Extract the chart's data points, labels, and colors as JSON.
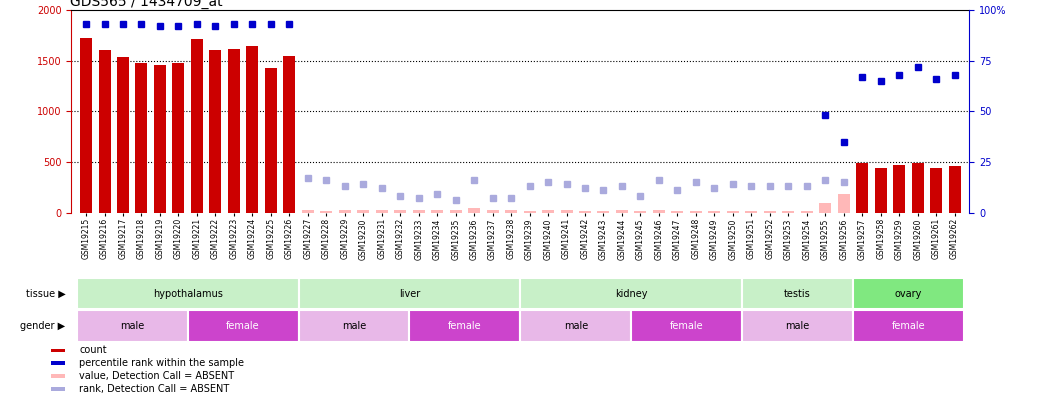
{
  "title": "GDS565 / 1434709_at",
  "samples": [
    "GSM19215",
    "GSM19216",
    "GSM19217",
    "GSM19218",
    "GSM19219",
    "GSM19220",
    "GSM19221",
    "GSM19222",
    "GSM19223",
    "GSM19224",
    "GSM19225",
    "GSM19226",
    "GSM19227",
    "GSM19228",
    "GSM19229",
    "GSM19230",
    "GSM19231",
    "GSM19232",
    "GSM19233",
    "GSM19234",
    "GSM19235",
    "GSM19236",
    "GSM19237",
    "GSM19238",
    "GSM19239",
    "GSM19240",
    "GSM19241",
    "GSM19242",
    "GSM19243",
    "GSM19244",
    "GSM19245",
    "GSM19246",
    "GSM19247",
    "GSM19248",
    "GSM19249",
    "GSM19250",
    "GSM19251",
    "GSM19252",
    "GSM19253",
    "GSM19254",
    "GSM19255",
    "GSM19256",
    "GSM19257",
    "GSM19258",
    "GSM19259",
    "GSM19260",
    "GSM19261",
    "GSM19262"
  ],
  "count_values": [
    1720,
    1610,
    1540,
    1480,
    1460,
    1480,
    1710,
    1610,
    1620,
    1650,
    1430,
    1550,
    null,
    null,
    null,
    null,
    null,
    null,
    null,
    null,
    null,
    null,
    null,
    null,
    null,
    null,
    null,
    null,
    null,
    null,
    null,
    null,
    null,
    null,
    null,
    null,
    null,
    null,
    null,
    null,
    null,
    null,
    490,
    440,
    470,
    490,
    440,
    460
  ],
  "absent_count_values": [
    null,
    null,
    null,
    null,
    null,
    null,
    null,
    null,
    null,
    null,
    null,
    null,
    30,
    20,
    25,
    30,
    25,
    30,
    30,
    30,
    25,
    50,
    25,
    25,
    20,
    25,
    30,
    20,
    20,
    25,
    20,
    25,
    20,
    20,
    20,
    20,
    20,
    20,
    20,
    20,
    100,
    180,
    null,
    null,
    null,
    null,
    null,
    null
  ],
  "percentile_values": [
    93,
    93,
    93,
    93,
    92,
    92,
    93,
    92,
    93,
    93,
    93,
    93,
    null,
    null,
    null,
    null,
    null,
    null,
    null,
    null,
    null,
    null,
    null,
    null,
    null,
    null,
    null,
    null,
    null,
    null,
    null,
    null,
    null,
    null,
    null,
    null,
    null,
    null,
    null,
    null,
    null,
    null,
    null,
    null,
    null,
    null,
    null,
    null
  ],
  "absent_rank_values": [
    null,
    null,
    null,
    null,
    null,
    null,
    null,
    null,
    null,
    null,
    null,
    null,
    17,
    16,
    13,
    14,
    12,
    8,
    7,
    9,
    6,
    16,
    7,
    7,
    13,
    15,
    14,
    12,
    11,
    13,
    8,
    16,
    11,
    15,
    12,
    14,
    13,
    13,
    13,
    13,
    16,
    15,
    null,
    null,
    null,
    null,
    null,
    null
  ],
  "present_percentile_ovary": [
    null,
    null,
    null,
    null,
    null,
    null,
    null,
    null,
    null,
    null,
    null,
    null,
    null,
    null,
    null,
    null,
    null,
    null,
    null,
    null,
    null,
    null,
    null,
    null,
    null,
    null,
    null,
    null,
    null,
    null,
    null,
    null,
    null,
    null,
    null,
    null,
    null,
    null,
    null,
    null,
    null,
    null,
    67,
    65,
    68,
    72,
    66,
    68
  ],
  "testis_present_percentile": [
    null,
    null,
    null,
    null,
    null,
    null,
    null,
    null,
    null,
    null,
    null,
    null,
    null,
    null,
    null,
    null,
    null,
    null,
    null,
    null,
    null,
    null,
    null,
    null,
    null,
    null,
    null,
    null,
    null,
    null,
    null,
    null,
    null,
    null,
    null,
    null,
    null,
    null,
    null,
    null,
    48,
    35,
    null,
    null,
    null,
    null,
    null,
    null
  ],
  "tissue_groups": [
    {
      "label": "hypothalamus",
      "start": 0,
      "end": 11,
      "color": "#c8f0c8"
    },
    {
      "label": "liver",
      "start": 12,
      "end": 23,
      "color": "#c8f0c8"
    },
    {
      "label": "kidney",
      "start": 24,
      "end": 35,
      "color": "#c8f0c8"
    },
    {
      "label": "testis",
      "start": 36,
      "end": 41,
      "color": "#c8f0c8"
    },
    {
      "label": "ovary",
      "start": 42,
      "end": 47,
      "color": "#80e880"
    }
  ],
  "gender_groups": [
    {
      "label": "male",
      "start": 0,
      "end": 5,
      "color": "#e8b8e8"
    },
    {
      "label": "female",
      "start": 6,
      "end": 11,
      "color": "#cc44cc"
    },
    {
      "label": "male",
      "start": 12,
      "end": 17,
      "color": "#e8b8e8"
    },
    {
      "label": "female",
      "start": 18,
      "end": 23,
      "color": "#cc44cc"
    },
    {
      "label": "male",
      "start": 24,
      "end": 29,
      "color": "#e8b8e8"
    },
    {
      "label": "female",
      "start": 30,
      "end": 35,
      "color": "#cc44cc"
    },
    {
      "label": "male",
      "start": 36,
      "end": 41,
      "color": "#e8b8e8"
    },
    {
      "label": "female",
      "start": 42,
      "end": 47,
      "color": "#cc44cc"
    }
  ],
  "ylim_left": [
    0,
    2000
  ],
  "ylim_right": [
    0,
    100
  ],
  "yticks_left": [
    0,
    500,
    1000,
    1500,
    2000
  ],
  "yticks_right": [
    0,
    25,
    50,
    75,
    100
  ],
  "bar_color": "#cc0000",
  "absent_bar_color": "#ffb8b8",
  "percentile_color": "#0000cc",
  "absent_rank_color": "#aaaadd",
  "title_fontsize": 10,
  "tick_fontsize": 5.5
}
